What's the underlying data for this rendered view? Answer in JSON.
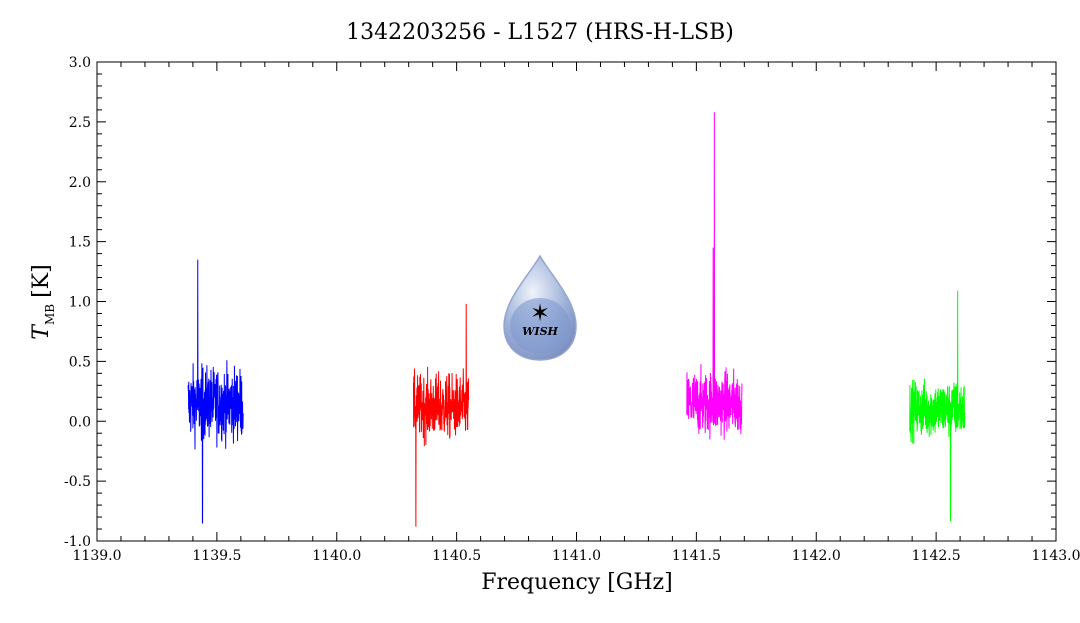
{
  "chart_data": {
    "type": "line",
    "title": "1342203256 - L1527 (HRS-H-LSB)",
    "xlabel": "Frequency [GHz]",
    "ylabel_main": "T",
    "ylabel_sub": "MB",
    "ylabel_unit": "[K]",
    "xlim": [
      1139.0,
      1143.0
    ],
    "ylim": [
      -1.0,
      3.0
    ],
    "x_ticks": [
      "1139.0",
      "1139.5",
      "1140.0",
      "1140.5",
      "1141.0",
      "1141.5",
      "1142.0",
      "1142.5",
      "1143.0"
    ],
    "y_ticks": [
      "-1.0",
      "-0.5",
      "0.0",
      "0.5",
      "1.0",
      "1.5",
      "2.0",
      "2.5",
      "3.0"
    ],
    "grid": false,
    "series": [
      {
        "color": "#0000ff",
        "x_range": [
          1139.38,
          1139.61
        ],
        "baseline": 0.15,
        "noise": 0.28,
        "peaks": [
          [
            1139.42,
            1.35
          ],
          [
            1139.44,
            -0.85
          ]
        ]
      },
      {
        "color": "#ff0000",
        "x_range": [
          1140.32,
          1140.55
        ],
        "baseline": 0.12,
        "noise": 0.25,
        "peaks": [
          [
            1140.33,
            -0.88
          ],
          [
            1140.54,
            0.98
          ]
        ]
      },
      {
        "color": "#ff00ff",
        "x_range": [
          1141.46,
          1141.69
        ],
        "baseline": 0.15,
        "noise": 0.25,
        "peaks": [
          [
            1141.575,
            2.58
          ],
          [
            1141.57,
            1.45
          ]
        ]
      },
      {
        "color": "#00ff00",
        "x_range": [
          1142.39,
          1142.62
        ],
        "baseline": 0.1,
        "noise": 0.22,
        "peaks": [
          [
            1142.59,
            1.09
          ],
          [
            1142.56,
            -0.83
          ]
        ]
      }
    ],
    "logo_text": "WISH",
    "logo_color": "#9ab0d8"
  }
}
